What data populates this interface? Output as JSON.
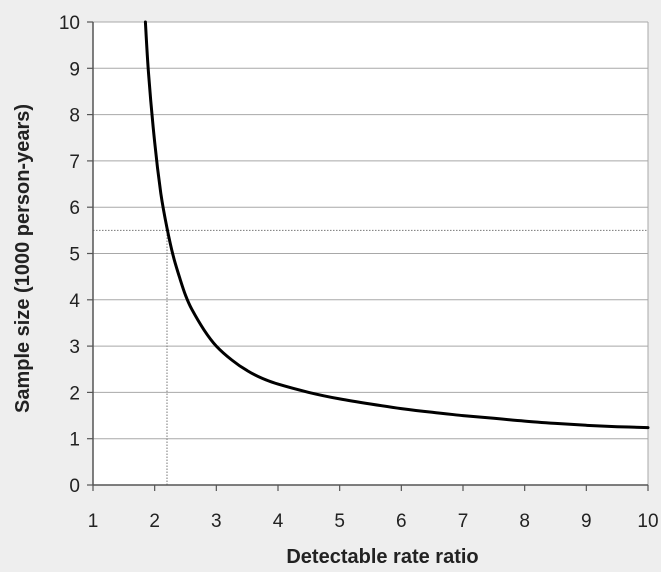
{
  "chart_data": {
    "type": "line",
    "title": "",
    "xlabel": "Detectable rate ratio",
    "ylabel": "Sample size (1000 person-years)",
    "xlim": [
      1,
      10
    ],
    "ylim": [
      0,
      10
    ],
    "xticks": [
      "1",
      "2",
      "3",
      "4",
      "5",
      "6",
      "7",
      "8",
      "9",
      "10"
    ],
    "yticks": [
      "0",
      "1",
      "2",
      "3",
      "4",
      "5",
      "6",
      "7",
      "8",
      "9",
      "10"
    ],
    "grid": "horizontal",
    "series": [
      {
        "x": [
          1.85,
          1.9,
          2.0,
          2.1,
          2.2,
          2.3,
          2.4,
          2.5,
          2.6,
          2.8,
          3.0,
          3.25,
          3.5,
          3.75,
          4.0,
          4.5,
          5.0,
          5.5,
          6.0,
          6.5,
          7.0,
          7.5,
          8.0,
          8.5,
          9.0,
          9.5,
          10.0
        ],
        "y": [
          10.0,
          8.9,
          7.4,
          6.3,
          5.55,
          4.95,
          4.5,
          4.1,
          3.8,
          3.35,
          3.0,
          2.7,
          2.47,
          2.3,
          2.18,
          2.0,
          1.86,
          1.75,
          1.65,
          1.57,
          1.5,
          1.44,
          1.38,
          1.33,
          1.29,
          1.26,
          1.24
        ],
        "color": "#000000"
      }
    ],
    "reference_lines": [
      {
        "orientation": "horizontal",
        "value": 5.5
      },
      {
        "orientation": "vertical",
        "value": 2.2
      }
    ],
    "colors": {
      "background": "#eeeeee",
      "plot_area": "#ffffff",
      "grid": "#a8a8a8",
      "axis": "#555555",
      "reference": "#777777"
    }
  }
}
